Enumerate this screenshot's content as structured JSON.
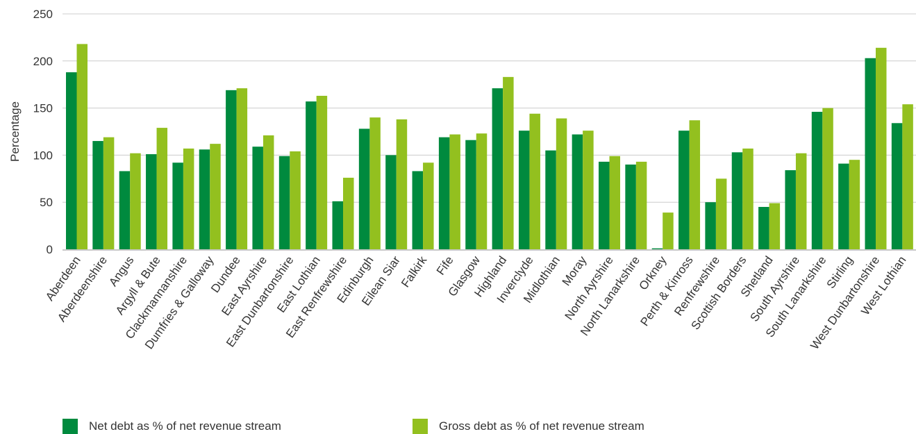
{
  "chart_data": {
    "type": "bar",
    "title": "",
    "xlabel": "",
    "ylabel": "Percentage",
    "ylim": [
      0,
      250
    ],
    "yticks": [
      0,
      50,
      100,
      150,
      200,
      250
    ],
    "grid": true,
    "legend_position": "bottom-left",
    "categories": [
      "Aberdeen",
      "Aberdeenshire",
      "Angus",
      "Argyll & Bute",
      "Clackmannanshire",
      "Dumfries & Galloway",
      "Dundee",
      "East Ayrshire",
      "East Dunbartonshire",
      "East Lothian",
      "East Renfrewshire",
      "Edinburgh",
      "Eilean Siar",
      "Falkirk",
      "Fife",
      "Glasgow",
      "Highland",
      "Inverclyde",
      "Midlothian",
      "Moray",
      "North Ayrshire",
      "North Lanarkshire",
      "Orkney",
      "Perth & Kinross",
      "Renfrewshire",
      "Scottish Borders",
      "Shetland",
      "South Ayrshire",
      "South Lanarkshire",
      "Stirling",
      "West Dunbartonshire",
      "West Lothian"
    ],
    "series": [
      {
        "name": "Net debt as % of net revenue stream",
        "color": "#008a3e",
        "values": [
          188,
          115,
          83,
          101,
          92,
          106,
          169,
          109,
          99,
          157,
          51,
          128,
          100,
          83,
          119,
          116,
          171,
          126,
          105,
          122,
          93,
          90,
          1,
          126,
          50,
          103,
          45,
          84,
          146,
          91,
          203,
          134
        ]
      },
      {
        "name": "Gross debt as % of net revenue stream",
        "color": "#93c01f",
        "values": [
          218,
          119,
          102,
          129,
          107,
          112,
          171,
          121,
          104,
          163,
          76,
          140,
          138,
          92,
          122,
          123,
          183,
          144,
          139,
          126,
          99,
          93,
          39,
          137,
          75,
          107,
          49,
          102,
          150,
          95,
          214,
          154
        ]
      }
    ]
  }
}
